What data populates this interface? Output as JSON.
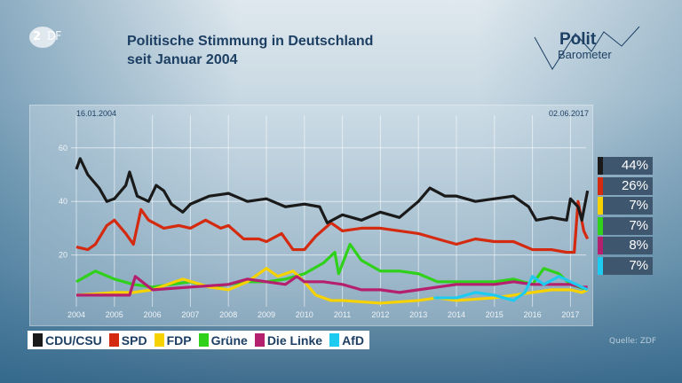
{
  "header": {
    "logo": "ZDF",
    "title_line1": "Politische Stimmung in Deutschland",
    "title_line2": "seit Januar 2004",
    "brand_line1": "Polit",
    "brand_line2": "Barometer"
  },
  "source": "Quelle: ZDF",
  "chart_data": {
    "type": "line",
    "title": "Politische Stimmung in Deutschland seit Januar 2004",
    "start_label": "16.01.2004",
    "end_label": "02.06.2017",
    "xlim": [
      2004,
      2017.5
    ],
    "ylim": [
      0,
      65
    ],
    "x_ticks": [
      "2004",
      "2005",
      "2006",
      "2007",
      "2008",
      "2009",
      "2010",
      "2011",
      "2012",
      "2013",
      "2014",
      "2015",
      "2016",
      "2017"
    ],
    "y_ticks": [
      "20",
      "40",
      "60"
    ],
    "grid": true,
    "legend": "bottom-left",
    "series": [
      {
        "name": "CDU/CSU",
        "color": "#1a1a1a",
        "latest": "44%",
        "x": [
          2004,
          2004.1,
          2004.3,
          2004.6,
          2004.8,
          2005,
          2005.3,
          2005.4,
          2005.6,
          2005.9,
          2006.1,
          2006.3,
          2006.5,
          2006.8,
          2007,
          2007.5,
          2008,
          2008.5,
          2009,
          2009.5,
          2010,
          2010.4,
          2010.6,
          2011,
          2011.5,
          2012,
          2012.5,
          2013,
          2013.3,
          2013.7,
          2014,
          2014.5,
          2015,
          2015.5,
          2015.9,
          2016.1,
          2016.5,
          2016.9,
          2017,
          2017.2,
          2017.3,
          2017.45
        ],
        "y": [
          52,
          56,
          50,
          45,
          40,
          41,
          46,
          51,
          42,
          40,
          46,
          44,
          39,
          36,
          39,
          42,
          43,
          40,
          41,
          38,
          39,
          38,
          32,
          35,
          33,
          36,
          34,
          40,
          45,
          42,
          42,
          40,
          41,
          42,
          38,
          33,
          34,
          33,
          41,
          38,
          33,
          44
        ]
      },
      {
        "name": "SPD",
        "color": "#d42a10",
        "latest": "26%",
        "x": [
          2004,
          2004.3,
          2004.5,
          2004.8,
          2005,
          2005.3,
          2005.5,
          2005.7,
          2005.9,
          2006.3,
          2006.7,
          2007,
          2007.4,
          2007.8,
          2008,
          2008.4,
          2008.8,
          2009,
          2009.4,
          2009.7,
          2010,
          2010.3,
          2010.7,
          2011,
          2011.5,
          2012,
          2012.5,
          2013,
          2013.5,
          2014,
          2014.5,
          2015,
          2015.5,
          2016,
          2016.5,
          2016.9,
          2017.1,
          2017.2,
          2017.35,
          2017.45
        ],
        "y": [
          23,
          22,
          24,
          31,
          33,
          28,
          24,
          37,
          33,
          30,
          31,
          30,
          33,
          30,
          31,
          26,
          26,
          25,
          28,
          22,
          22,
          27,
          32,
          29,
          30,
          30,
          29,
          28,
          26,
          24,
          26,
          25,
          25,
          22,
          22,
          21,
          21,
          40,
          29,
          26
        ]
      },
      {
        "name": "FDP",
        "color": "#f6d200",
        "latest": "7%",
        "x": [
          2004,
          2005,
          2005.5,
          2006,
          2006.8,
          2007.5,
          2008,
          2008.5,
          2009,
          2009.3,
          2009.7,
          2010,
          2010.3,
          2010.7,
          2011,
          2012,
          2013,
          2013.5,
          2014,
          2015,
          2015.5,
          2016,
          2016.5,
          2017,
          2017.3,
          2017.45
        ],
        "y": [
          5,
          6,
          6,
          7,
          11,
          8,
          7,
          10,
          15,
          12,
          14,
          10,
          5,
          3,
          3,
          2,
          3,
          4,
          3,
          4,
          5,
          6,
          7,
          7,
          6,
          7
        ]
      },
      {
        "name": "Grüne",
        "color": "#2fd11a",
        "latest": "7%",
        "x": [
          2004,
          2004.5,
          2005,
          2005.5,
          2006,
          2006.5,
          2007,
          2007.5,
          2008,
          2008.5,
          2009,
          2009.5,
          2010,
          2010.5,
          2010.8,
          2010.9,
          2011.2,
          2011.5,
          2012,
          2012.5,
          2013,
          2013.5,
          2014,
          2014.5,
          2015,
          2015.5,
          2016,
          2016.3,
          2016.7,
          2017,
          2017.45
        ],
        "y": [
          10,
          14,
          11,
          9,
          8,
          9,
          10,
          8,
          9,
          10,
          10,
          11,
          13,
          17,
          21,
          13,
          24,
          18,
          14,
          14,
          13,
          10,
          10,
          10,
          10,
          11,
          9,
          15,
          13,
          9,
          7
        ]
      },
      {
        "name": "Die Linke",
        "color": "#b5206e",
        "latest": "8%",
        "x": [
          2004,
          2005,
          2005.4,
          2005.55,
          2006,
          2007,
          2008,
          2008.5,
          2009,
          2009.5,
          2009.8,
          2010,
          2010.5,
          2011,
          2011.5,
          2012,
          2012.5,
          2013,
          2013.5,
          2014,
          2014.5,
          2015,
          2015.5,
          2016,
          2016.5,
          2017,
          2017.3,
          2017.45
        ],
        "y": [
          5,
          5,
          5,
          12,
          7,
          8,
          9,
          11,
          10,
          9,
          12,
          10,
          10,
          9,
          7,
          7,
          6,
          7,
          8,
          9,
          9,
          9,
          10,
          9,
          9,
          9,
          8,
          8
        ]
      },
      {
        "name": "AfD",
        "color": "#1ecbf0",
        "latest": "7%",
        "x": [
          2013.4,
          2013.7,
          2014,
          2014.5,
          2015,
          2015.5,
          2015.8,
          2016,
          2016.3,
          2016.7,
          2017,
          2017.3,
          2017.45
        ],
        "y": [
          4,
          4,
          4,
          6,
          5,
          3,
          6,
          12,
          9,
          12,
          10,
          8,
          7
        ]
      }
    ]
  }
}
